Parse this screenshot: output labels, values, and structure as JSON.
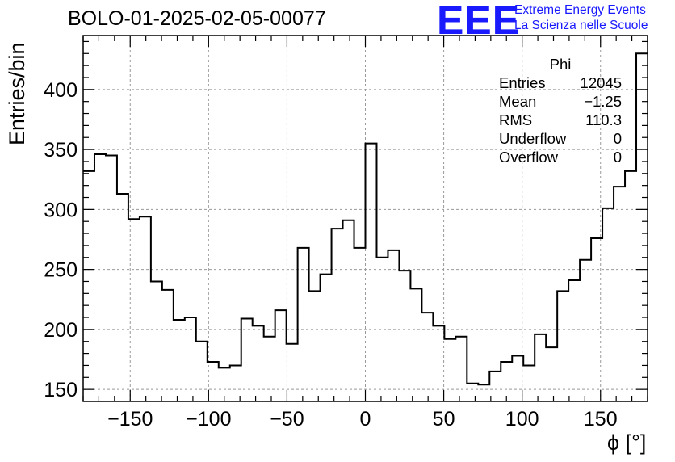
{
  "chart": {
    "title": "BOLO-01-2025-02-05-00077",
    "logo": "EEE",
    "logo_line1": "Extreme Energy Events",
    "logo_line2": "La Scienza nelle Scuole",
    "ylabel": "Entries/bin",
    "xlabel": "ϕ [°]"
  },
  "stats": {
    "name": "Phi",
    "rows": [
      {
        "label": "Entries",
        "value": "12045"
      },
      {
        "label": "Mean",
        "value": "−1.25"
      },
      {
        "label": "RMS",
        "value": "110.3"
      },
      {
        "label": "Underflow",
        "value": "0"
      },
      {
        "label": "Overflow",
        "value": "0"
      }
    ]
  },
  "chart_data": {
    "type": "histogram",
    "title": "BOLO-01-2025-02-05-00077",
    "xlabel": "ϕ [°]",
    "ylabel": "Entries/bin",
    "xlim": [
      -180,
      180
    ],
    "ylim": [
      140,
      445
    ],
    "bin_width": 7.2,
    "xticks": [
      -150,
      -100,
      -50,
      0,
      50,
      100,
      150
    ],
    "yticks": [
      150,
      200,
      250,
      300,
      350,
      400
    ],
    "xtick_labels": [
      "−150",
      "−100",
      "−50",
      "0",
      "50",
      "100",
      "150"
    ],
    "ytick_labels": [
      "150",
      "200",
      "250",
      "300",
      "350",
      "400"
    ],
    "grid": true,
    "values": [
      332,
      346,
      345,
      313,
      292,
      294,
      240,
      233,
      208,
      210,
      190,
      173,
      168,
      170,
      209,
      203,
      194,
      216,
      188,
      268,
      232,
      246,
      284,
      291,
      268,
      355,
      260,
      266,
      249,
      234,
      214,
      203,
      192,
      194,
      155,
      154,
      165,
      173,
      178,
      170,
      196,
      185,
      232,
      241,
      258,
      276,
      301,
      319,
      332,
      430
    ]
  }
}
